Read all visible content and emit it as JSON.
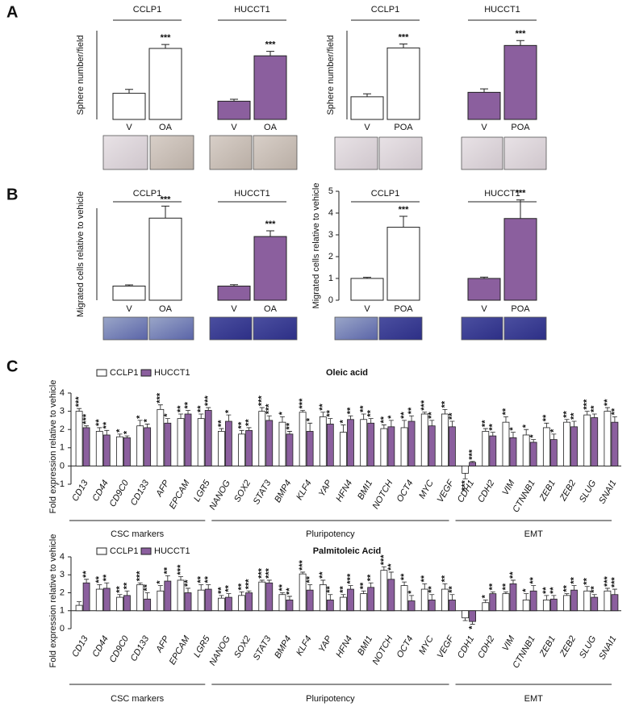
{
  "panel_labels": [
    "A",
    "B",
    "C"
  ],
  "chart_data": [
    {
      "type": "bar",
      "y_label": "Sphere number/field",
      "groups": [
        {
          "label": "CCLP1",
          "count": 2
        },
        {
          "label": "HUCCT1",
          "count": 2
        }
      ],
      "categories": [
        "V",
        "OA",
        "V",
        "OA"
      ],
      "values": [
        5.3,
        14.4,
        3.7,
        12.9
      ],
      "errors": [
        0.8,
        0.8,
        0.4,
        0.9
      ],
      "significance": [
        null,
        "***",
        null,
        "***"
      ],
      "colors": [
        "#ffffff",
        "#ffffff",
        "#8b5f9e",
        "#8b5f9e"
      ],
      "ylim": [
        0,
        18
      ]
    },
    {
      "type": "bar",
      "y_label": "Sphere number/field",
      "groups": [
        {
          "label": "CCLP1",
          "count": 2
        },
        {
          "label": "HUCCT1",
          "count": 2
        }
      ],
      "categories": [
        "V",
        "POA",
        "V",
        "POA"
      ],
      "values": [
        4.6,
        14.5,
        5.5,
        15.0
      ],
      "errors": [
        0.6,
        0.8,
        0.7,
        1.0
      ],
      "significance": [
        null,
        "***",
        null,
        "***"
      ],
      "colors": [
        "#ffffff",
        "#ffffff",
        "#8b5f9e",
        "#8b5f9e"
      ],
      "ylim": [
        0,
        18
      ]
    },
    {
      "type": "bar",
      "y_label": "Migrated cells relative to vehicle",
      "groups": [
        {
          "label": "CCLP1",
          "count": 2
        },
        {
          "label": "HUCCT1",
          "count": 2
        }
      ],
      "categories": [
        "V",
        "OA",
        "V",
        "OA"
      ],
      "values": [
        1.0,
        5.8,
        1.0,
        4.5
      ],
      "errors": [
        0.08,
        0.85,
        0.1,
        0.4
      ],
      "significance": [
        null,
        "***",
        null,
        "***"
      ],
      "colors": [
        "#ffffff",
        "#ffffff",
        "#8b5f9e",
        "#8b5f9e"
      ],
      "ylim": [
        0,
        6.5
      ]
    },
    {
      "type": "bar",
      "y_label": "Migrated cells relative to vehicle",
      "groups": [
        {
          "label": "CCLP1",
          "count": 2
        },
        {
          "label": "HUCCT1",
          "count": 2
        }
      ],
      "categories": [
        "V",
        "POA",
        "V",
        "POA"
      ],
      "values": [
        1.0,
        3.35,
        1.0,
        3.75
      ],
      "errors": [
        0.05,
        0.5,
        0.06,
        0.85
      ],
      "significance": [
        null,
        "***",
        null,
        "***"
      ],
      "colors": [
        "#ffffff",
        "#ffffff",
        "#8b5f9e",
        "#8b5f9e"
      ],
      "ylim": [
        0,
        5
      ],
      "yticks": [
        0,
        1,
        2,
        3,
        4,
        5
      ]
    },
    {
      "type": "grouped_bar",
      "title": "Oleic acid",
      "y_label": "Fold expression relative to vehicle",
      "categories": [
        "CD13",
        "CD44",
        "CD9C0",
        "CD133",
        "AFP",
        "EPCAM",
        "LGR5",
        "NANOG",
        "SOX2",
        "STAT3",
        "BMP4",
        "KLF4",
        "YAP",
        "HFN4",
        "BMI1",
        "NOTCH",
        "OCT4",
        "MYC",
        "VEGF",
        "CDH1",
        "CDH2",
        "VIM",
        "CTNNB1",
        "ZEB1",
        "ZEB2",
        "SLUG",
        "SNAI1"
      ],
      "groups": [
        {
          "label": "CSC markers",
          "count": 7
        },
        {
          "label": "Pluripotency",
          "count": 12
        },
        {
          "label": "EMT",
          "count": 8
        }
      ],
      "series": [
        {
          "name": "CCLP1",
          "color": "#ffffff",
          "values": [
            3.0,
            1.9,
            1.6,
            2.2,
            3.1,
            2.6,
            2.6,
            1.9,
            1.75,
            3.0,
            2.4,
            2.95,
            2.7,
            1.85,
            2.55,
            2.05,
            2.1,
            2.85,
            2.85,
            -0.4,
            1.9,
            2.4,
            1.7,
            2.1,
            2.4,
            2.8,
            3.0
          ],
          "errors": [
            0.15,
            0.2,
            0.15,
            0.3,
            0.25,
            0.25,
            0.25,
            0.15,
            0.2,
            0.2,
            0.3,
            0.1,
            0.25,
            0.4,
            0.3,
            0.2,
            0.4,
            0.1,
            0.25,
            0.3,
            0.15,
            0.3,
            0.3,
            0.25,
            0.15,
            0.2,
            0.2
          ],
          "significance": [
            "***",
            "**",
            "*",
            "*",
            "***",
            "**",
            "**",
            "**",
            "**",
            "***",
            "*",
            "***",
            "**",
            "*",
            "**",
            "**",
            "**",
            "***",
            "**",
            "***",
            "**",
            "**",
            "*",
            "**",
            "**",
            "***",
            "**"
          ]
        },
        {
          "name": "HUCCT1",
          "color": "#8b5f9e",
          "values": [
            2.1,
            1.7,
            1.55,
            2.1,
            2.35,
            2.85,
            3.05,
            2.45,
            1.95,
            2.5,
            1.75,
            1.9,
            2.3,
            2.55,
            2.35,
            2.15,
            2.45,
            2.2,
            2.15,
            0.2,
            1.65,
            1.55,
            1.3,
            1.45,
            2.15,
            2.65,
            2.4
          ],
          "errors": [
            0.1,
            0.25,
            0.1,
            0.2,
            0.25,
            0.2,
            0.15,
            0.35,
            0.15,
            0.25,
            0.15,
            0.45,
            0.3,
            0.2,
            0.25,
            0.35,
            0.3,
            0.3,
            0.3,
            0.05,
            0.2,
            0.3,
            0.15,
            0.3,
            0.3,
            0.2,
            0.3
          ],
          "significance": [
            "***",
            "**",
            "*",
            "*",
            "*",
            "**",
            "***",
            "*",
            "**",
            "***",
            "**",
            "*",
            "**",
            "**",
            "**",
            "*",
            "**",
            "**",
            "**",
            "***",
            "**",
            "*",
            "*",
            "*",
            "**",
            "**",
            "**"
          ]
        }
      ],
      "ylim": [
        -1,
        4
      ],
      "yticks": [
        -1,
        0,
        1,
        2,
        3,
        4
      ],
      "baseline": 0
    },
    {
      "type": "grouped_bar",
      "title": "Palmitoleic Acid",
      "y_label": "Fold expression relative to vehicle",
      "categories": [
        "CD13",
        "CD44",
        "CD9C0",
        "CD133",
        "AFP",
        "EPCAM",
        "LGR5",
        "NANOG",
        "SOX2",
        "STAT3",
        "BMP4",
        "KLF4",
        "YAP",
        "HFN4",
        "BMI1",
        "NOTCH",
        "OCT4",
        "MYC",
        "VEGF",
        "CDH1",
        "CDH2",
        "VIM",
        "CTNNB1",
        "ZEB1",
        "ZEB2",
        "SLUG",
        "SNAI1"
      ],
      "groups": [
        {
          "label": "CSC markers",
          "count": 7
        },
        {
          "label": "Pluripotency",
          "count": 12
        },
        {
          "label": "EMT",
          "count": 8
        }
      ],
      "series": [
        {
          "name": "CCLP1",
          "color": "#ffffff",
          "values": [
            1.3,
            2.2,
            1.75,
            2.45,
            2.1,
            2.7,
            2.15,
            1.7,
            1.85,
            2.6,
            1.9,
            3.05,
            2.45,
            1.75,
            1.95,
            3.25,
            2.4,
            2.2,
            2.2,
            0.6,
            1.45,
            1.95,
            1.6,
            1.6,
            1.85,
            2.1,
            2.1
          ],
          "errors": [
            0.2,
            0.25,
            0.15,
            0.1,
            0.3,
            0.2,
            0.3,
            0.15,
            0.2,
            0.1,
            0.1,
            0.1,
            0.25,
            0.15,
            0.15,
            0.2,
            0.2,
            0.3,
            0.3,
            0.15,
            0.15,
            0.1,
            0.35,
            0.25,
            0.1,
            0.25,
            0.15
          ],
          "significance": [
            null,
            "**",
            "**",
            "***",
            "*",
            "***",
            "**",
            "**",
            "**",
            "***",
            "**",
            "***",
            "**",
            "**",
            "**",
            "***",
            "**",
            "**",
            "**",
            null,
            "*",
            "**",
            "*",
            "**",
            "**",
            "**",
            "***"
          ]
        },
        {
          "name": "HUCCT1",
          "color": "#8b5f9e",
          "values": [
            2.55,
            2.25,
            1.85,
            1.65,
            2.65,
            2.0,
            2.2,
            1.75,
            2.0,
            2.55,
            1.6,
            2.15,
            1.6,
            2.2,
            2.3,
            2.75,
            1.55,
            1.6,
            1.6,
            0.4,
            1.95,
            2.5,
            2.1,
            1.65,
            2.15,
            1.75,
            1.9
          ],
          "errors": [
            0.2,
            0.3,
            0.25,
            0.35,
            0.3,
            0.25,
            0.25,
            0.2,
            0.1,
            0.15,
            0.2,
            0.3,
            0.3,
            0.2,
            0.25,
            0.4,
            0.3,
            0.3,
            0.3,
            0.15,
            0.1,
            0.2,
            0.3,
            0.2,
            0.25,
            0.15,
            0.3
          ],
          "significance": [
            "**",
            "**",
            "**",
            "**",
            "**",
            "**",
            "**",
            "**",
            "***",
            "***",
            "**",
            "**",
            "**",
            "***",
            "**",
            "**",
            "*",
            "**",
            "**",
            "*",
            "**",
            "**",
            "**",
            "**",
            "**",
            "**",
            "***"
          ]
        }
      ],
      "ylim": [
        0,
        4
      ],
      "yticks": [
        0,
        1,
        2,
        3,
        4
      ],
      "baseline": 1
    }
  ]
}
